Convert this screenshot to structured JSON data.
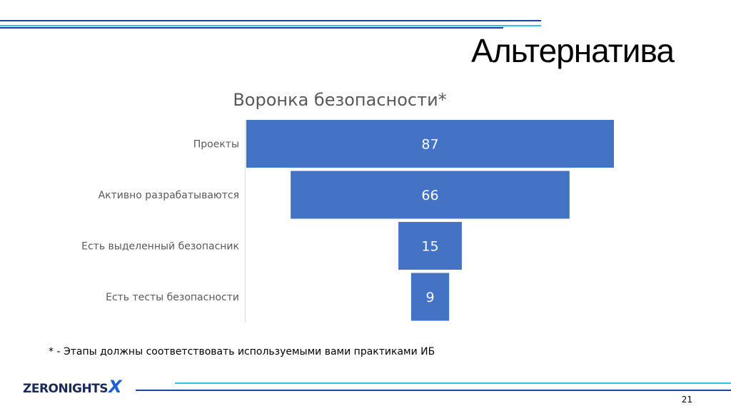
{
  "slide": {
    "title": "Альтернатива",
    "footnote": "* - Этапы должны соответствовать используемыми вами практиками ИБ",
    "logo": {
      "main": "ZERONIGHTS",
      "accent": "X"
    },
    "page_number": "21"
  },
  "colors": {
    "bar": "#4472c4",
    "accent_cyan": "#2ec4e6",
    "accent_blue": "#1f3fa8"
  },
  "chart_data": {
    "type": "bar",
    "subtype": "funnel",
    "title": "Воронка безопасности*",
    "categories": [
      "Проекты",
      "Активно разрабатываются",
      "Есть выделенный безопасник",
      "Есть тесты безопасности"
    ],
    "values": [
      87,
      66,
      15,
      9
    ],
    "data_labels": true,
    "grid": false,
    "legend": "none"
  }
}
